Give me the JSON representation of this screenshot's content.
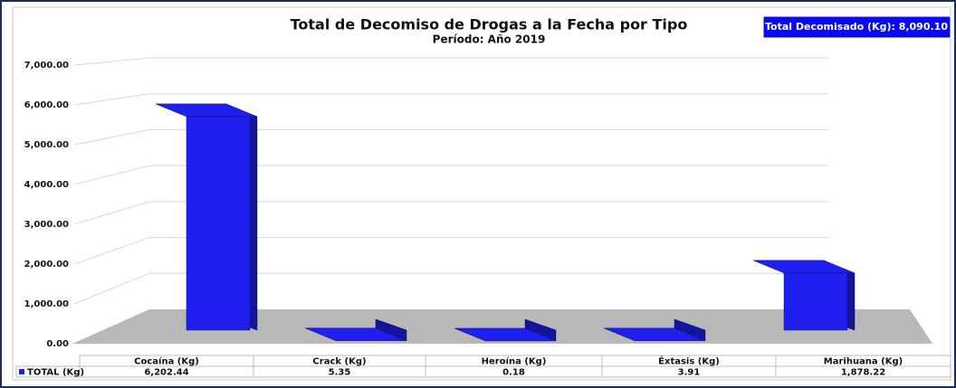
{
  "chart_data": {
    "type": "bar3d",
    "title": "Total de Decomiso de Drogas a la Fecha por Tipo",
    "subtitle": "Período: Año 2019",
    "badge": "Total Decomisado (Kg): 8,090.10",
    "categories": [
      "Cocaína (Kg)",
      "Crack (Kg)",
      "Heroína (Kg)",
      "Éxtasis (Kg)",
      "Marihuana (Kg)"
    ],
    "series": [
      {
        "name": "TOTAL (Kg)",
        "color": "#1f1ff0",
        "values": [
          6202.44,
          5.35,
          0.18,
          3.91,
          1878.22
        ],
        "value_labels": [
          "6,202.44",
          "5.35",
          "0.18",
          "3.91",
          "1,878.22"
        ]
      }
    ],
    "ylim": [
      0,
      7000
    ],
    "yticks": [
      {
        "value": 0,
        "label": "0.00"
      },
      {
        "value": 1000,
        "label": "1,000.00"
      },
      {
        "value": 2000,
        "label": "2,000.00"
      },
      {
        "value": 3000,
        "label": "3,000.00"
      },
      {
        "value": 4000,
        "label": "4,000.00"
      },
      {
        "value": 5000,
        "label": "5,000.00"
      },
      {
        "value": 6000,
        "label": "6,000.00"
      },
      {
        "value": 7000,
        "label": "7,000.00"
      }
    ],
    "grid": true
  }
}
